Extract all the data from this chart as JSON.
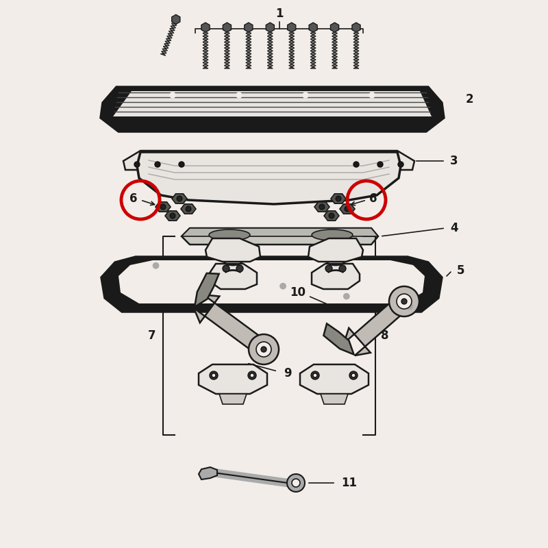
{
  "bg_color": "#f2ede8",
  "line_color": "#1a1a1a",
  "red_circle_color": "#cc0000",
  "fill_light": "#e8e4e0",
  "fill_medium": "#d0cac4",
  "fill_dark": "#888880",
  "fill_black": "#111111",
  "fig_width": 8.0,
  "fig_height": 8.0,
  "dpi": 100
}
